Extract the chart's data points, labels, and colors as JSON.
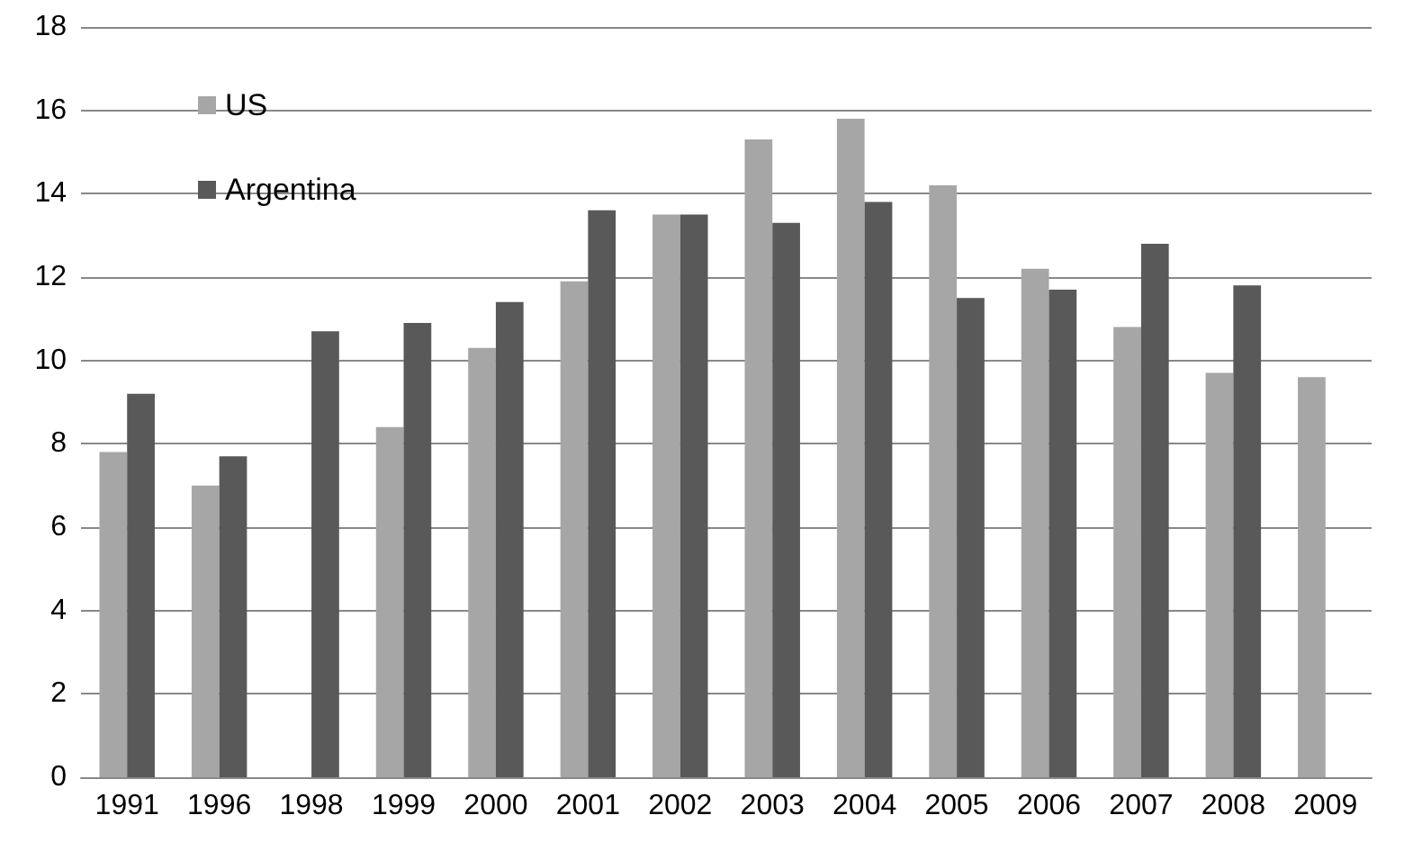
{
  "chart_data": {
    "type": "bar",
    "categories": [
      "1991",
      "1996",
      "1998",
      "1999",
      "2000",
      "2001",
      "2002",
      "2003",
      "2004",
      "2005",
      "2006",
      "2007",
      "2008",
      "2009"
    ],
    "series": [
      {
        "name": "US",
        "color": "#a6a6a6",
        "values": [
          7.8,
          7.0,
          null,
          8.4,
          10.3,
          11.9,
          13.5,
          15.3,
          15.8,
          14.2,
          12.2,
          10.8,
          9.7,
          9.6
        ]
      },
      {
        "name": "Argentina",
        "color": "#595959",
        "values": [
          9.2,
          7.7,
          10.7,
          10.9,
          11.4,
          13.6,
          13.5,
          13.3,
          13.8,
          11.5,
          11.7,
          12.8,
          11.8,
          null
        ]
      }
    ],
    "ylim": [
      0,
      18
    ],
    "yticks": [
      0,
      2,
      4,
      6,
      8,
      10,
      12,
      14,
      16,
      18
    ],
    "grid": "y",
    "legend": "top left"
  }
}
